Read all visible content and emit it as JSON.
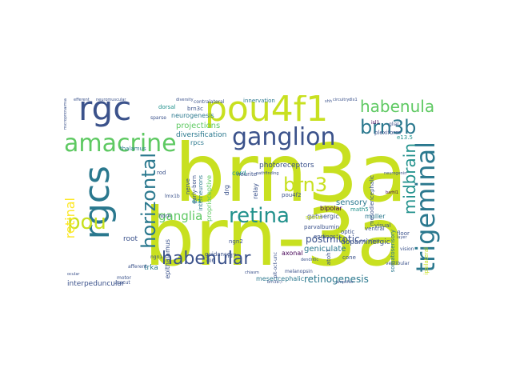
{
  "palette": {
    "yellow_green": "#c8e020",
    "green": "#5ec962",
    "teal": "#21918c",
    "blue": "#3b528b",
    "purple": "#440154",
    "light_green": "#7ad151",
    "cyan": "#2a788e"
  },
  "words": {
    "brn3a": "brn3a",
    "brn_3a": "brn-3a",
    "pou4f1": "pou4f1",
    "rgc": "rgc",
    "rgcs": "rgcs",
    "amacrine": "amacrine",
    "ganglion": "ganglion",
    "habenula": "habenula",
    "brn3b": "brn3b",
    "trigeminal": "trigeminal",
    "midbrain": "midbrain",
    "retina": "retina",
    "horizontal": "horizontal",
    "habenular": "habenular",
    "pou": "pou",
    "brn3": "brn3",
    "retinal": "retinal",
    "ganglia": "ganglia",
    "retinogenesis": "retinogenesis",
    "postmitotic": "postmitotic",
    "sensory": "sensory",
    "projections": "projections",
    "diversification": "diversification",
    "photoreceptors": "photoreceptors",
    "neurogenesis": "neurogenesis",
    "interpeduncular": "interpeduncular",
    "mesencephalic": "mesencephalic",
    "dopaminergic": "dopaminergic",
    "geniculate": "geniculate",
    "gabaergic": "gabaergic",
    "bipolar": "bipolar",
    "innervation": "innervation",
    "root": "root",
    "rpcs": "rpcs",
    "cord": "cord",
    "brn3c": "brn3c",
    "dorsal": "dorsal",
    "visual": "visual",
    "floor": "floor",
    "muller": "muller",
    "math5": "math5",
    "epithalamus": "epithalamus",
    "thalamus": "thalamus",
    "proprioceptive": "proprioceptive",
    "interneurons": "interneurons",
    "early_born": "early-born",
    "nerve": "nerve",
    "rod": "rod",
    "horn": "horn",
    "di3": "di3",
    "drg": "drg",
    "pou4f2": "pou4f2",
    "relay": "relay",
    "axonal": "axonal",
    "parvalbumin": "parvalbumin",
    "endings": "endings",
    "optic": "optic",
    "cone": "cone",
    "atoh7": "atoh7",
    "ventral": "ventral",
    "guidance": "guidance",
    "di6": "di6",
    "nd7": "nd7",
    "ngn2": "ngn2",
    "trka": "trka",
    "neurite": "neurite",
    "lmx1b": "lmx1b",
    "ngn1": "ngn1",
    "afferent": "afferent",
    "motor": "motor",
    "mesodiencephalic": "mesodiencephalic",
    "somatosensory": "somatosensory",
    "melanopsin": "melanopsin",
    "spinal": "spinal",
    "nervous": "nervous",
    "plexiform": "plexiform",
    "glial": "glial",
    "e13_5": "e13.5",
    "ipsilateral": "ipsilateral",
    "contralateral": "contralateral",
    "sparse": "sparse",
    "vestibular": "vestibular",
    "pit_oct_unc": "pit-oct-unc",
    "vision": "vision",
    "layer": "layer",
    "chiasm": "chiasm",
    "unecut": "unecut",
    "barhl1": "barhl1",
    "isl1": "isl1",
    "microphthalmia": "microphthalmia",
    "efferent": "efferent",
    "neuromuscular": "neuromuscular",
    "pathfinding": "pathfinding",
    "diversity": "diversity",
    "circuitry": "circuitry",
    "shh": "shh",
    "dlx1": "dlx1",
    "neurogenin": "neurogenin",
    "brn3b_minus": "brn3b-/-",
    "ocular": "ocular",
    "dendritic": "dendritic",
    "amplifier": "amplifier"
  }
}
